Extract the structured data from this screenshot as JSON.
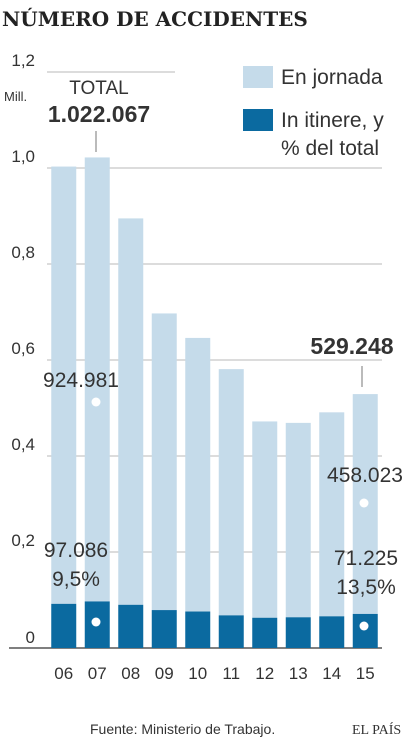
{
  "title": "NÚMERO DE ACCIDENTES",
  "unit_label": "Mill.",
  "legend": {
    "en_jornada": "En jornada",
    "in_itinere_line1": "In itinere, y",
    "in_itinere_line2": "% del total"
  },
  "annotations": {
    "total_label": "TOTAL",
    "total_2007": "1.022.067",
    "jornada_2007": "924.981",
    "itinere_2007": "97.086",
    "itinere_pct_2007": "9,5%",
    "total_2015": "529.248",
    "jornada_2015": "458.023",
    "itinere_2015": "71.225",
    "itinere_pct_2015": "13,5%"
  },
  "source": "Fuente: Ministerio de Trabajo.",
  "brand": "EL PAÍS",
  "colors": {
    "en_jornada": "#c5dbea",
    "in_itinere": "#0b6aa0",
    "grid": "#b9b9b9",
    "axis": "#555555"
  },
  "chart_data": {
    "type": "bar",
    "stacked": true,
    "categories": [
      "06",
      "07",
      "08",
      "09",
      "10",
      "11",
      "12",
      "13",
      "14",
      "15"
    ],
    "series": [
      {
        "name": "In itinere, y % del total",
        "values": [
          0.092,
          0.097,
          0.09,
          0.079,
          0.076,
          0.068,
          0.063,
          0.064,
          0.066,
          0.071
        ]
      },
      {
        "name": "En jornada",
        "values": [
          0.911,
          0.925,
          0.805,
          0.618,
          0.57,
          0.513,
          0.409,
          0.405,
          0.425,
          0.458
        ]
      }
    ],
    "yticks": [
      0,
      0.2,
      0.4,
      0.6,
      0.8,
      1.0,
      1.2
    ],
    "ytick_labels": [
      "0",
      "0,2",
      "0,4",
      "0,6",
      "0,8",
      "1,0",
      "1,2"
    ],
    "ylim": [
      0,
      1.2
    ],
    "grid": true,
    "legend_position": "top-right"
  }
}
